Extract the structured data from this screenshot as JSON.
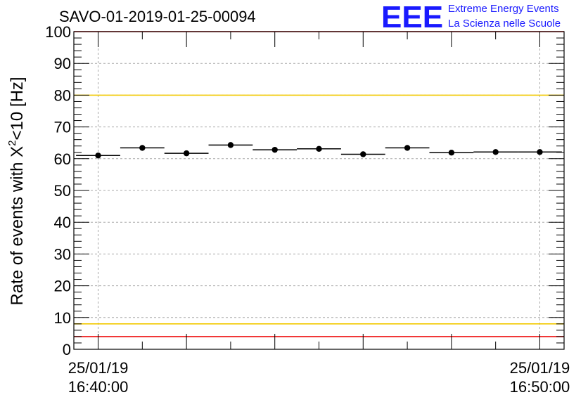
{
  "chart_data": {
    "type": "scatter",
    "title": "SAVO-01-2019-01-25-00094",
    "ylabel": {
      "main": "Rate of events with ",
      "chi": "X",
      "sup": "2",
      "tail": "<10 [Hz]"
    },
    "ylim": [
      0,
      100
    ],
    "y_ticks": [
      0,
      10,
      20,
      30,
      40,
      50,
      60,
      70,
      80,
      90,
      100
    ],
    "xlim_minutes": [
      -0.55,
      10.55
    ],
    "x_tick_labels": [
      {
        "minute": 0,
        "date": "25/01/19",
        "time": "16:40:00"
      },
      {
        "minute": 10,
        "date": "25/01/19",
        "time": "16:50:00"
      }
    ],
    "grid": true,
    "points": [
      {
        "x": 0,
        "y": 61.0,
        "x_err": 0.5
      },
      {
        "x": 1,
        "y": 63.4,
        "x_err": 0.5
      },
      {
        "x": 2,
        "y": 61.7,
        "x_err": 0.5
      },
      {
        "x": 3,
        "y": 64.3,
        "x_err": 0.5
      },
      {
        "x": 4,
        "y": 62.8,
        "x_err": 0.5
      },
      {
        "x": 5,
        "y": 63.1,
        "x_err": 0.5
      },
      {
        "x": 6,
        "y": 61.4,
        "x_err": 0.5
      },
      {
        "x": 7,
        "y": 63.4,
        "x_err": 0.5
      },
      {
        "x": 8,
        "y": 61.9,
        "x_err": 0.5
      },
      {
        "x": 9,
        "y": 62.1,
        "x_err": 0.5
      },
      {
        "x": 10,
        "y": 62.1,
        "x_err": 0.5
      }
    ],
    "reference_lines": [
      {
        "y": 100,
        "color": "#ee1111"
      },
      {
        "y": 80,
        "color": "#f2c900"
      },
      {
        "y": 8,
        "color": "#f2c900"
      },
      {
        "y": 4,
        "color": "#ee1111"
      }
    ]
  },
  "logo": {
    "mark": "EEE",
    "line1": "Extreme Energy Events",
    "line2": "La Scienza nelle Scuole",
    "color": "#1a1aff"
  }
}
